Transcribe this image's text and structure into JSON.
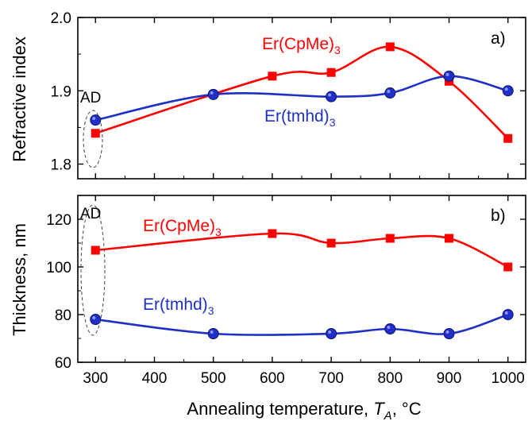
{
  "chart_data": [
    {
      "type": "line",
      "panel_label": "a)",
      "ylabel": "Refractive index",
      "xlim": [
        270,
        1030
      ],
      "ylim": [
        1.78,
        2.0
      ],
      "yticks": [
        1.8,
        1.9,
        2.0
      ],
      "ytick_labels": [
        "1.8",
        "1.9",
        "2.0"
      ],
      "annotation": "AD",
      "series": [
        {
          "name": "Er(CpMe)3",
          "label_main": "Er(CpMe)",
          "label_sub": "3",
          "color": "#ff0000",
          "marker": "square",
          "x": [
            300,
            600,
            700,
            800,
            900,
            1000
          ],
          "y": [
            1.842,
            1.92,
            1.925,
            1.96,
            1.913,
            1.835
          ]
        },
        {
          "name": "Er(tmhd)3",
          "label_main": "Er(tmhd)",
          "label_sub": "3",
          "color": "#1f2fc8",
          "marker": "circle",
          "x": [
            300,
            500,
            700,
            800,
            900,
            1000
          ],
          "y": [
            1.86,
            1.895,
            1.892,
            1.897,
            1.92,
            1.9
          ]
        }
      ]
    },
    {
      "type": "line",
      "panel_label": "b)",
      "ylabel": "Thickness, nm",
      "xlim": [
        270,
        1030
      ],
      "ylim": [
        60,
        130
      ],
      "yticks": [
        60,
        80,
        100,
        120
      ],
      "ytick_labels": [
        "60",
        "80",
        "100",
        "120"
      ],
      "annotation": "AD",
      "series": [
        {
          "name": "Er(CpMe)3",
          "label_main": "Er(CpMe)",
          "label_sub": "3",
          "color": "#ff0000",
          "marker": "square",
          "x": [
            300,
            600,
            700,
            800,
            900,
            1000
          ],
          "y": [
            107,
            114,
            110,
            112,
            112,
            100
          ]
        },
        {
          "name": "Er(tmhd)3",
          "label_main": "Er(tmhd)",
          "label_sub": "3",
          "color": "#1f2fc8",
          "marker": "circle",
          "x": [
            300,
            500,
            700,
            800,
            900,
            1000
          ],
          "y": [
            78,
            72,
            72,
            74,
            72,
            80
          ]
        }
      ]
    }
  ],
  "x_axis": {
    "xlabel_prefix": "Annealing temperature, ",
    "xlabel_var": "T",
    "xlabel_var_sub": "A",
    "xlabel_suffix": ", °C",
    "xticks": [
      300,
      400,
      500,
      600,
      700,
      800,
      900,
      1000
    ],
    "xtick_labels": [
      "300",
      "400",
      "500",
      "600",
      "700",
      "800",
      "900",
      "1000"
    ]
  }
}
